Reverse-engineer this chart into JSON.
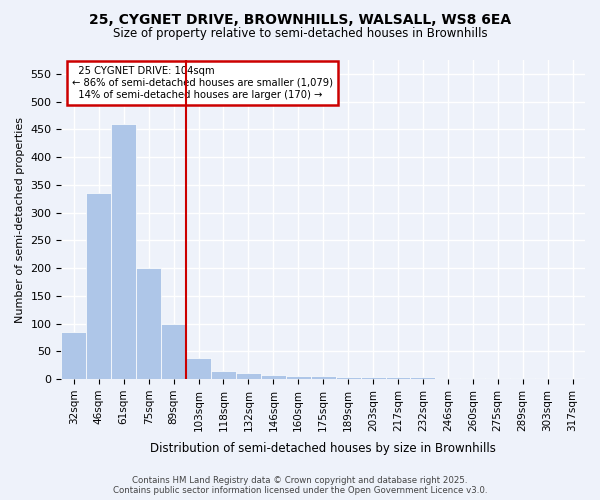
{
  "title": "25, CYGNET DRIVE, BROWNHILLS, WALSALL, WS8 6EA",
  "subtitle": "Size of property relative to semi-detached houses in Brownhills",
  "xlabel": "Distribution of semi-detached houses by size in Brownhills",
  "ylabel": "Number of semi-detached properties",
  "bin_labels": [
    "32sqm",
    "46sqm",
    "61sqm",
    "75sqm",
    "89sqm",
    "103sqm",
    "118sqm",
    "132sqm",
    "146sqm",
    "160sqm",
    "175sqm",
    "189sqm",
    "203sqm",
    "217sqm",
    "232sqm",
    "246sqm",
    "260sqm",
    "275sqm",
    "289sqm",
    "303sqm",
    "317sqm"
  ],
  "bar_values": [
    85,
    335,
    460,
    200,
    100,
    38,
    15,
    10,
    8,
    5,
    5,
    4,
    3,
    3,
    3,
    2,
    2,
    1,
    1,
    0
  ],
  "bar_color": "#aec6e8",
  "bar_edgecolor": "#aec6e8",
  "property_line_index": 5,
  "property_label": "25 CYGNET DRIVE: 104sqm",
  "smaller_pct": 86,
  "smaller_count": "1,079",
  "larger_pct": 14,
  "larger_count": "170",
  "vline_color": "#cc0000",
  "annotation_box_color": "#cc0000",
  "background_color": "#eef2fa",
  "grid_color": "#ffffff",
  "ylim": [
    0,
    575
  ],
  "yticks": [
    0,
    50,
    100,
    150,
    200,
    250,
    300,
    350,
    400,
    450,
    500,
    550
  ],
  "footer_line1": "Contains HM Land Registry data © Crown copyright and database right 2025.",
  "footer_line2": "Contains public sector information licensed under the Open Government Licence v3.0."
}
